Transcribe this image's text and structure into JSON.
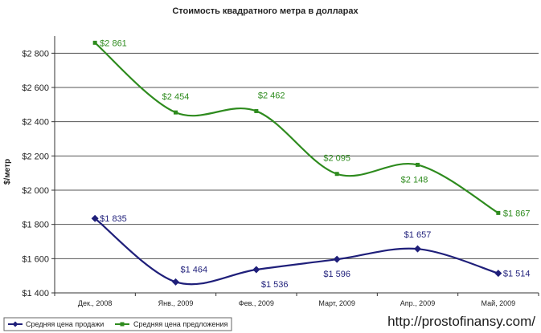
{
  "chart_data": {
    "type": "line",
    "title": "Стоимость квадратного метра в долларах",
    "ylabel": "$/метр",
    "xlabel": "",
    "categories": [
      "Дек., 2008",
      "Янв., 2009",
      "Фев., 2009",
      "Март, 2009",
      "Апр., 2009",
      "Май, 2009"
    ],
    "ylim": [
      1400,
      2900
    ],
    "yticks": [
      1400,
      1600,
      1800,
      2000,
      2200,
      2400,
      2600,
      2800
    ],
    "ytick_labels": [
      "$1 400",
      "$1 600",
      "$1 800",
      "$2 000",
      "$2 200",
      "$2 400",
      "$2 600",
      "$2 800"
    ],
    "grid": true,
    "legend_position": "bottom-left",
    "series": [
      {
        "name": "Средняя цена продажи",
        "color": "#1f1f7a",
        "marker": "diamond",
        "values": [
          1835,
          1464,
          1536,
          1596,
          1657,
          1514
        ],
        "labels": [
          "$1 835",
          "$1 464",
          "$1 536",
          "$1 596",
          "$1 657",
          "$1 514"
        ]
      },
      {
        "name": "Средняя цена предложения",
        "color": "#2e8b1e",
        "marker": "square",
        "values": [
          2861,
          2454,
          2462,
          2095,
          2148,
          1867
        ],
        "labels": [
          "$2 861",
          "$2 454",
          "$2 462",
          "$2 095",
          "$2 148",
          "$1 867"
        ]
      }
    ]
  },
  "watermark": "http://prostofinansy.com/"
}
